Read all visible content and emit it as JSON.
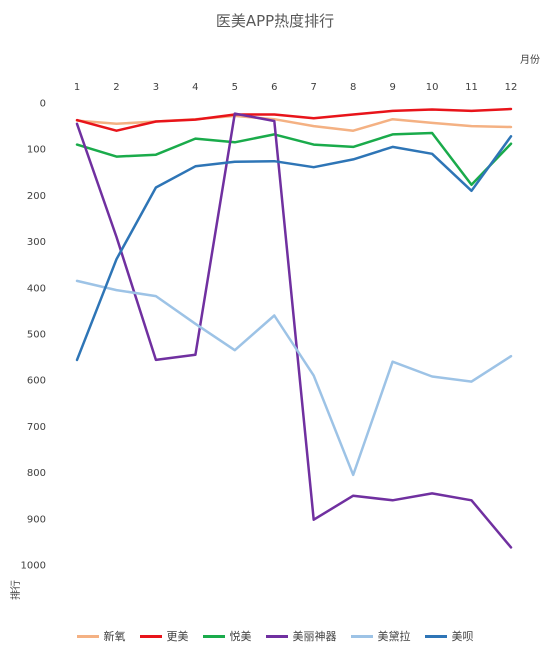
{
  "chart_data": {
    "type": "line",
    "title": "医美APP热度排行",
    "xlabel": "月份",
    "ylabel": "排行",
    "x": [
      1,
      2,
      3,
      4,
      5,
      6,
      7,
      8,
      9,
      10,
      11,
      12
    ],
    "x_tick_labels": [
      "1",
      "2",
      "3",
      "4",
      "5",
      "6",
      "7",
      "8",
      "9",
      "10",
      "11",
      "12"
    ],
    "ylim": [
      0,
      1000
    ],
    "y_inverted": true,
    "x_axis_position": "top",
    "y_ticks": [
      0,
      100,
      200,
      300,
      400,
      500,
      600,
      700,
      800,
      900,
      1000
    ],
    "y_tick_labels": [
      "0",
      "100",
      "200",
      "300",
      "400",
      "500",
      "600",
      "700",
      "800",
      "900",
      "1000"
    ],
    "grid": false,
    "legend_position": "bottom",
    "series": [
      {
        "name": "新氧",
        "color": "#F4B183",
        "values": [
          38,
          45,
          40,
          35,
          28,
          35,
          50,
          60,
          35,
          43,
          50,
          52
        ]
      },
      {
        "name": "更美",
        "color": "#E8141A",
        "values": [
          37,
          60,
          40,
          36,
          25,
          25,
          33,
          25,
          17,
          14,
          17,
          13
        ]
      },
      {
        "name": "悦美",
        "color": "#1AAB4B",
        "values": [
          90,
          116,
          112,
          77,
          85,
          68,
          90,
          95,
          68,
          65,
          177,
          88
        ]
      },
      {
        "name": "美丽神器",
        "color": "#7030A0",
        "values": [
          45,
          290,
          556,
          545,
          23,
          39,
          902,
          850,
          860,
          845,
          860,
          962
        ]
      },
      {
        "name": "美黛拉",
        "color": "#9DC3E6",
        "values": [
          385,
          405,
          418,
          478,
          535,
          460,
          590,
          805,
          560,
          592,
          603,
          548
        ]
      },
      {
        "name": "美呗",
        "color": "#2E75B6",
        "values": [
          556,
          338,
          183,
          137,
          127,
          126,
          139,
          122,
          95,
          110,
          190,
          72
        ]
      }
    ]
  }
}
